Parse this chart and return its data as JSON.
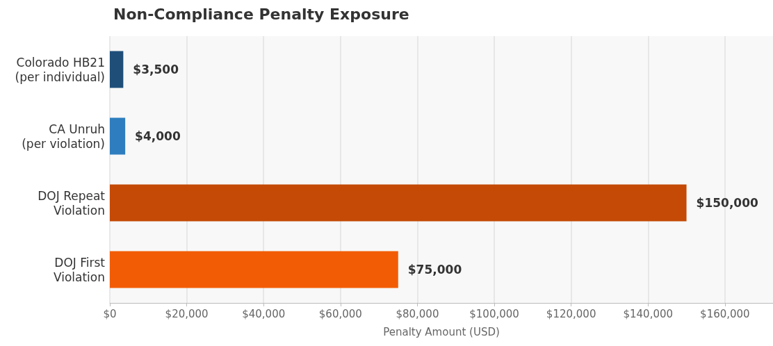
{
  "chart_data": {
    "type": "bar",
    "orientation": "horizontal",
    "title": "Non-Compliance Penalty Exposure",
    "xlabel": "Penalty Amount (USD)",
    "categories": [
      "Colorado HB21\n(per individual)",
      "CA Unruh\n(per violation)",
      "DOJ Repeat\nViolation",
      "DOJ First\nViolation"
    ],
    "values": [
      3500,
      4000,
      150000,
      75000
    ],
    "colors": [
      "#1f4e79",
      "#2e7ebf",
      "#c44a06",
      "#f25c05"
    ],
    "value_labels": [
      "$3,500",
      "$4,000",
      "$150,000",
      "$75,000"
    ],
    "xlim": [
      0,
      172500
    ],
    "xticks": [
      {
        "value": 0,
        "label": "$0"
      },
      {
        "value": 20000,
        "label": "$20,000"
      },
      {
        "value": 40000,
        "label": "$40,000"
      },
      {
        "value": 60000,
        "label": "$60,000"
      },
      {
        "value": 80000,
        "label": "$80,000"
      },
      {
        "value": 100000,
        "label": "$100,000"
      },
      {
        "value": 120000,
        "label": "$120,000"
      },
      {
        "value": 140000,
        "label": "$140,000"
      },
      {
        "value": 160000,
        "label": "$160,000"
      }
    ],
    "grid": "x"
  }
}
